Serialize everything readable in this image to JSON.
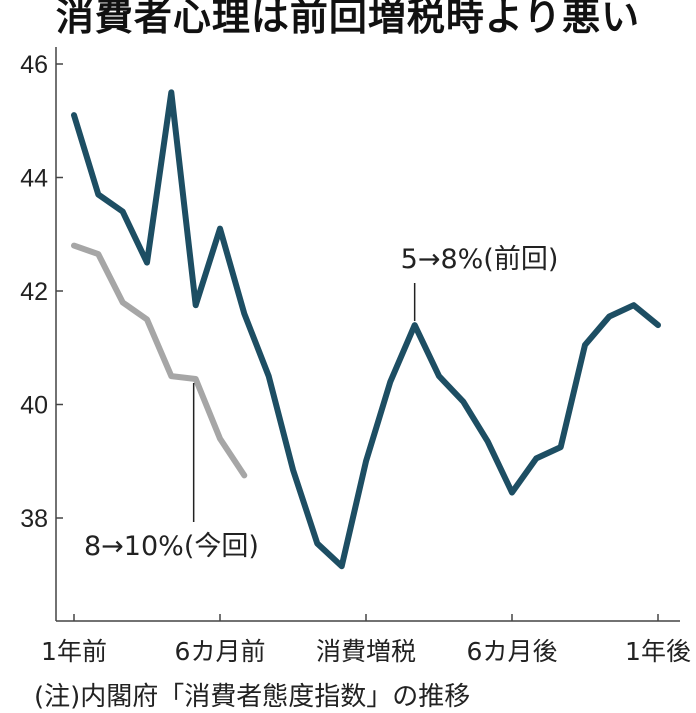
{
  "chart_data": {
    "type": "line",
    "title": "消費者心理は前回増税時より悪い",
    "xlabel": "",
    "ylabel": "",
    "ylim": [
      36.3,
      46.3
    ],
    "yticks": [
      38,
      40,
      42,
      44,
      46
    ],
    "x": [
      -12,
      -11,
      -10,
      -9,
      -8,
      -7,
      -6,
      -5,
      -4,
      -3,
      -2,
      -1,
      0,
      1,
      2,
      3,
      4,
      5,
      6,
      7,
      8,
      9,
      10,
      11,
      12
    ],
    "xticks": [
      {
        "x": -12,
        "label": "1年前"
      },
      {
        "x": -6,
        "label": "6カ月前"
      },
      {
        "x": 0,
        "label": "消費増税"
      },
      {
        "x": 6,
        "label": "6カ月後"
      },
      {
        "x": 12,
        "label": "1年後"
      }
    ],
    "series": [
      {
        "name": "5→8%(前回)",
        "color": "#1d4e63",
        "x": [
          -12,
          -11,
          -10,
          -9,
          -8,
          -7,
          -6,
          -5,
          -4,
          -3,
          -2,
          -1,
          0,
          1,
          2,
          3,
          4,
          5,
          6,
          7,
          8,
          9,
          10,
          11,
          12
        ],
        "values": [
          45.1,
          43.7,
          43.4,
          42.5,
          45.5,
          41.75,
          43.1,
          41.6,
          40.5,
          38.85,
          37.55,
          37.15,
          39.0,
          40.4,
          41.4,
          40.5,
          40.05,
          39.35,
          38.45,
          39.05,
          39.25,
          41.05,
          41.55,
          41.75,
          41.4
        ],
        "annotation": {
          "x": 2,
          "label": "5→8%(前回)"
        }
      },
      {
        "name": "8→10%(今回)",
        "color": "#a6a6a6",
        "x": [
          -12,
          -11,
          -10,
          -9,
          -8,
          -7,
          -6,
          -5
        ],
        "values": [
          42.8,
          42.65,
          41.8,
          41.5,
          40.5,
          40.45,
          39.4,
          38.75
        ],
        "annotation": {
          "x": -7,
          "label": "8→10%(今回)"
        }
      }
    ],
    "grid": false,
    "legend": "inline annotations",
    "note": "(注)内閣府「消費者態度指数」の推移"
  }
}
